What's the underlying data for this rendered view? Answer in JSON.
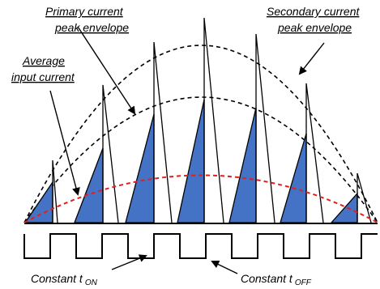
{
  "labels": {
    "primary_line1": "Primary current",
    "primary_line2": "peak envelope",
    "secondary_line1": "Secondary current",
    "secondary_line2": "peak envelope",
    "average_line1": "Average",
    "average_line2": "input current",
    "ton_main": "Constant t",
    "ton_sub": "ON",
    "toff_main": "Constant t",
    "toff_sub": "OFF"
  },
  "colors": {
    "primary_fill": "#4472c4",
    "stroke": "#000000",
    "average_curve": "#e02020"
  }
}
